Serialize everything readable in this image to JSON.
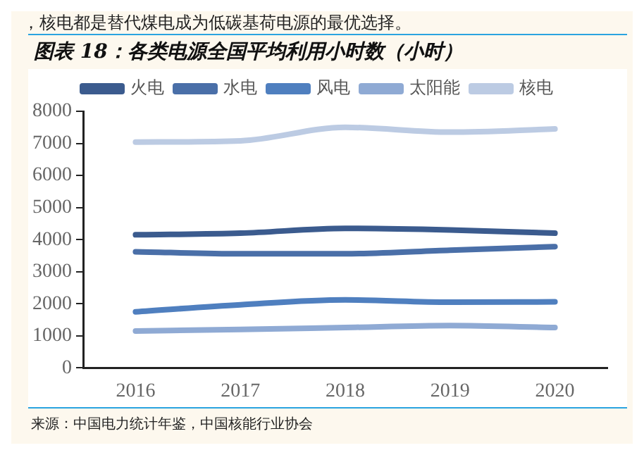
{
  "chart_data": {
    "type": "line",
    "title": "图表 18：各类电源全国平均利用小时数（小时）",
    "categories": [
      "2016",
      "2017",
      "2018",
      "2019",
      "2020"
    ],
    "series": [
      {
        "name": "火电",
        "color": "#3b5b8e",
        "values": [
          4150,
          4200,
          4350,
          4300,
          4200
        ]
      },
      {
        "name": "水电",
        "color": "#4a6fa8",
        "values": [
          3620,
          3560,
          3560,
          3670,
          3780
        ]
      },
      {
        "name": "风电",
        "color": "#4f7fbf",
        "values": [
          1750,
          1970,
          2120,
          2050,
          2060
        ]
      },
      {
        "name": "太阳能",
        "color": "#8faad4",
        "values": [
          1150,
          1200,
          1260,
          1320,
          1260
        ]
      },
      {
        "name": "核电",
        "color": "#bccbe3",
        "values": [
          7040,
          7080,
          7500,
          7350,
          7450
        ]
      }
    ],
    "ylim": [
      0,
      8000
    ],
    "yticks": [
      0,
      1000,
      2000,
      3000,
      4000,
      5000,
      6000,
      7000,
      8000
    ],
    "grid": false,
    "legend": "top",
    "marker": "none",
    "line_style": "solid",
    "annotations": [
      "，核电都是替代煤电成为低碳基荷电源的最优选择。",
      "来源：中国电力统计年鉴，中国核能行业协会"
    ]
  }
}
